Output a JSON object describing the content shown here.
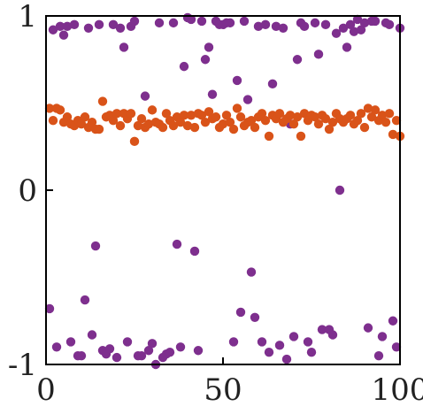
{
  "chart_data": {
    "type": "scatter",
    "title": "",
    "xlabel": "",
    "ylabel": "",
    "xlim": [
      0,
      100
    ],
    "ylim": [
      -1,
      1
    ],
    "xticks": [
      {
        "value": 0,
        "label": "0"
      },
      {
        "value": 50,
        "label": "50"
      },
      {
        "value": 100,
        "label": "100"
      }
    ],
    "yticks": [
      {
        "value": -1,
        "label": "-1"
      },
      {
        "value": 0,
        "label": "0"
      },
      {
        "value": 1,
        "label": "1"
      }
    ],
    "grid": false,
    "legend": "none",
    "series": [
      {
        "color": "#7E2F8E",
        "points": [
          [
            1,
            -0.68
          ],
          [
            2,
            0.92
          ],
          [
            3,
            -0.9
          ],
          [
            4,
            0.94
          ],
          [
            5,
            0.89
          ],
          [
            6,
            0.94
          ],
          [
            7,
            -0.87
          ],
          [
            8,
            0.95
          ],
          [
            9,
            -0.95
          ],
          [
            10,
            -0.95
          ],
          [
            11,
            -0.63
          ],
          [
            12,
            0.93
          ],
          [
            13,
            -0.83
          ],
          [
            14,
            -0.32
          ],
          [
            15,
            0.95
          ],
          [
            16,
            -0.92
          ],
          [
            17,
            -0.94
          ],
          [
            18,
            -0.91
          ],
          [
            19,
            0.95
          ],
          [
            20,
            -0.96
          ],
          [
            21,
            0.93
          ],
          [
            22,
            0.82
          ],
          [
            23,
            -0.87
          ],
          [
            24,
            0.94
          ],
          [
            25,
            0.97
          ],
          [
            26,
            -0.95
          ],
          [
            27,
            -0.95
          ],
          [
            28,
            0.54
          ],
          [
            29,
            -0.92
          ],
          [
            30,
            -0.88
          ],
          [
            31,
            -1.0
          ],
          [
            32,
            0.96
          ],
          [
            33,
            -0.96
          ],
          [
            34,
            -0.94
          ],
          [
            35,
            -0.93
          ],
          [
            36,
            0.96
          ],
          [
            37,
            -0.31
          ],
          [
            38,
            -0.9
          ],
          [
            39,
            0.71
          ],
          [
            40,
            0.99
          ],
          [
            41,
            0.98
          ],
          [
            42,
            -0.35
          ],
          [
            43,
            -0.92
          ],
          [
            44,
            0.97
          ],
          [
            45,
            0.75
          ],
          [
            46,
            0.82
          ],
          [
            47,
            0.55
          ],
          [
            48,
            0.97
          ],
          [
            49,
            0.95
          ],
          [
            50,
            0.95
          ],
          [
            51,
            0.96
          ],
          [
            52,
            0.96
          ],
          [
            53,
            -0.87
          ],
          [
            54,
            0.63
          ],
          [
            55,
            -0.7
          ],
          [
            56,
            0.97
          ],
          [
            57,
            0.52
          ],
          [
            58,
            -0.47
          ],
          [
            59,
            -0.73
          ],
          [
            60,
            0.94
          ],
          [
            61,
            -0.87
          ],
          [
            62,
            0.95
          ],
          [
            63,
            -0.93
          ],
          [
            64,
            0.61
          ],
          [
            65,
            0.94
          ],
          [
            66,
            -0.89
          ],
          [
            67,
            0.93
          ],
          [
            68,
            -0.97
          ],
          [
            69,
            0.38
          ],
          [
            70,
            -0.84
          ],
          [
            71,
            0.75
          ],
          [
            72,
            0.96
          ],
          [
            73,
            0.94
          ],
          [
            74,
            -0.87
          ],
          [
            75,
            -0.93
          ],
          [
            76,
            0.96
          ],
          [
            77,
            0.78
          ],
          [
            78,
            -0.8
          ],
          [
            79,
            0.95
          ],
          [
            80,
            -0.8
          ],
          [
            81,
            -0.83
          ],
          [
            82,
            0.9
          ],
          [
            83,
            0.0
          ],
          [
            84,
            0.93
          ],
          [
            85,
            0.82
          ],
          [
            86,
            0.95
          ],
          [
            87,
            0.91
          ],
          [
            88,
            0.98
          ],
          [
            89,
            0.92
          ],
          [
            90,
            0.96
          ],
          [
            91,
            -0.79
          ],
          [
            92,
            0.97
          ],
          [
            93,
            0.97
          ],
          [
            94,
            -0.95
          ],
          [
            95,
            -0.84
          ],
          [
            96,
            0.96
          ],
          [
            97,
            0.95
          ],
          [
            98,
            -0.75
          ],
          [
            99,
            -0.9
          ],
          [
            100,
            0.93
          ]
        ]
      },
      {
        "color": "#D95319",
        "points": [
          [
            1,
            0.47
          ],
          [
            2,
            0.4
          ],
          [
            3,
            0.47
          ],
          [
            4,
            0.46
          ],
          [
            5,
            0.39
          ],
          [
            6,
            0.42
          ],
          [
            7,
            0.38
          ],
          [
            8,
            0.37
          ],
          [
            9,
            0.4
          ],
          [
            10,
            0.38
          ],
          [
            11,
            0.42
          ],
          [
            12,
            0.36
          ],
          [
            13,
            0.39
          ],
          [
            14,
            0.35
          ],
          [
            15,
            0.35
          ],
          [
            16,
            0.51
          ],
          [
            17,
            0.42
          ],
          [
            18,
            0.43
          ],
          [
            19,
            0.4
          ],
          [
            20,
            0.44
          ],
          [
            21,
            0.37
          ],
          [
            22,
            0.44
          ],
          [
            23,
            0.41
          ],
          [
            24,
            0.44
          ],
          [
            25,
            0.28
          ],
          [
            26,
            0.37
          ],
          [
            27,
            0.41
          ],
          [
            28,
            0.36
          ],
          [
            29,
            0.38
          ],
          [
            30,
            0.46
          ],
          [
            31,
            0.39
          ],
          [
            32,
            0.38
          ],
          [
            33,
            0.36
          ],
          [
            34,
            0.44
          ],
          [
            35,
            0.4
          ],
          [
            36,
            0.37
          ],
          [
            37,
            0.42
          ],
          [
            38,
            0.39
          ],
          [
            39,
            0.43
          ],
          [
            40,
            0.37
          ],
          [
            41,
            0.43
          ],
          [
            42,
            0.36
          ],
          [
            43,
            0.44
          ],
          [
            44,
            0.43
          ],
          [
            45,
            0.39
          ],
          [
            46,
            0.45
          ],
          [
            47,
            0.41
          ],
          [
            48,
            0.42
          ],
          [
            49,
            0.36
          ],
          [
            50,
            0.38
          ],
          [
            51,
            0.43
          ],
          [
            52,
            0.39
          ],
          [
            53,
            0.35
          ],
          [
            54,
            0.47
          ],
          [
            55,
            0.42
          ],
          [
            56,
            0.37
          ],
          [
            57,
            0.39
          ],
          [
            58,
            0.4
          ],
          [
            59,
            0.36
          ],
          [
            60,
            0.42
          ],
          [
            61,
            0.44
          ],
          [
            62,
            0.4
          ],
          [
            63,
            0.31
          ],
          [
            64,
            0.43
          ],
          [
            65,
            0.41
          ],
          [
            66,
            0.44
          ],
          [
            67,
            0.39
          ],
          [
            68,
            0.41
          ],
          [
            69,
            0.43
          ],
          [
            70,
            0.38
          ],
          [
            71,
            0.42
          ],
          [
            72,
            0.31
          ],
          [
            73,
            0.44
          ],
          [
            74,
            0.4
          ],
          [
            75,
            0.43
          ],
          [
            76,
            0.42
          ],
          [
            77,
            0.38
          ],
          [
            78,
            0.43
          ],
          [
            79,
            0.41
          ],
          [
            80,
            0.35
          ],
          [
            81,
            0.39
          ],
          [
            82,
            0.44
          ],
          [
            83,
            0.41
          ],
          [
            84,
            0.39
          ],
          [
            85,
            0.41
          ],
          [
            86,
            0.43
          ],
          [
            87,
            0.38
          ],
          [
            88,
            0.4
          ],
          [
            89,
            0.44
          ],
          [
            90,
            0.36
          ],
          [
            91,
            0.47
          ],
          [
            92,
            0.42
          ],
          [
            93,
            0.46
          ],
          [
            94,
            0.4
          ],
          [
            95,
            0.43
          ],
          [
            96,
            0.39
          ],
          [
            97,
            0.44
          ],
          [
            98,
            0.32
          ],
          [
            99,
            0.4
          ],
          [
            100,
            0.31
          ]
        ]
      }
    ]
  }
}
